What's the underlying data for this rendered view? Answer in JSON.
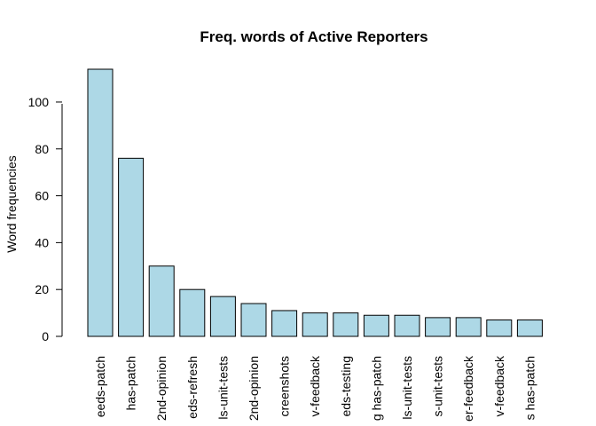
{
  "chart_data": {
    "type": "bar",
    "title": "Freq. words of Active Reporters",
    "xlabel": "",
    "ylabel": "Word frequencies",
    "ylim": [
      0,
      114
    ],
    "yticks": [
      0,
      20,
      40,
      60,
      80,
      100
    ],
    "bar_color": "#ADD8E6",
    "categories": [
      "eeds-patch",
      "has-patch",
      "2nd-opinion",
      "eds-refresh",
      "ls-unit-tests",
      "2nd-opinion",
      "creenshots",
      "v-feedback",
      "eds-testing",
      "g has-patch",
      "ls-unit-tests",
      "s-unit-tests",
      "er-feedback",
      "v-feedback",
      "s has-patch"
    ],
    "values": [
      114,
      76,
      30,
      20,
      17,
      14,
      11,
      10,
      10,
      9,
      9,
      8,
      8,
      7,
      7
    ]
  }
}
